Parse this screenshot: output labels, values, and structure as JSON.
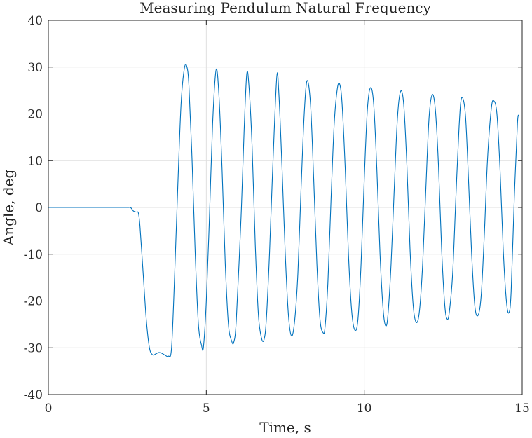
{
  "chart_data": {
    "type": "line",
    "title": "Measuring Pendulum Natural Frequency",
    "xlabel": "Time, s",
    "ylabel": "Angle, deg",
    "xlim": [
      0,
      15
    ],
    "ylim": [
      -40,
      40
    ],
    "xticks": [
      0,
      5,
      10,
      15
    ],
    "yticks": [
      -40,
      -30,
      -20,
      -10,
      0,
      10,
      20,
      30,
      40
    ],
    "grid": true,
    "series_color": "#0072BD",
    "series": [
      {
        "x": [
          0,
          0.5,
          1.0,
          1.5,
          2.0,
          2.5,
          2.6,
          2.7,
          2.8,
          2.85,
          2.9,
          3.0,
          3.1,
          3.2,
          3.3,
          3.4,
          3.5,
          3.6,
          3.7,
          3.8,
          3.9,
          4.0,
          4.1,
          4.2,
          4.3,
          4.38,
          4.45,
          4.55,
          4.65,
          4.75,
          4.85,
          4.91,
          5.0,
          5.1,
          5.2,
          5.31,
          5.4,
          5.5,
          5.6,
          5.7,
          5.8,
          5.87,
          5.95,
          6.1,
          6.2,
          6.28,
          6.35,
          6.45,
          6.55,
          6.65,
          6.75,
          6.83,
          6.9,
          7.0,
          7.1,
          7.23,
          7.3,
          7.4,
          7.5,
          7.6,
          7.7,
          7.8,
          7.9,
          8.0,
          8.1,
          8.19,
          8.3,
          8.4,
          8.5,
          8.6,
          8.7,
          8.76,
          8.85,
          8.95,
          9.05,
          9.15,
          9.23,
          9.3,
          9.4,
          9.5,
          9.6,
          9.7,
          9.8,
          9.9,
          10.0,
          10.1,
          10.2,
          10.3,
          10.4,
          10.5,
          10.6,
          10.68,
          10.75,
          10.85,
          10.95,
          11.05,
          11.15,
          11.25,
          11.35,
          11.45,
          11.55,
          11.65,
          11.75,
          11.85,
          11.95,
          12.05,
          12.15,
          12.25,
          12.35,
          12.45,
          12.55,
          12.63,
          12.7,
          12.8,
          12.9,
          13.0,
          13.08,
          13.2,
          13.3,
          13.4,
          13.5,
          13.6,
          13.7,
          13.8,
          13.9,
          14.02,
          14.1,
          14.2,
          14.3,
          14.4,
          14.5,
          14.58,
          14.65,
          14.75,
          14.85,
          14.9
        ],
        "y": [
          0,
          0,
          0,
          0,
          0,
          0,
          0,
          -0.8,
          -1.0,
          -1.2,
          -4,
          -14,
          -24,
          -30,
          -31.5,
          -31.3,
          -31,
          -31.2,
          -31.6,
          -31.8,
          -30,
          -14,
          5,
          22,
          29.5,
          30.2,
          26,
          10,
          -10,
          -25,
          -29.5,
          -29.8,
          -20,
          -2,
          18,
          29.4,
          24,
          8,
          -12,
          -25,
          -28.5,
          -28.8,
          -24,
          -2,
          17,
          28.5,
          26,
          13,
          -8,
          -23,
          -28,
          -28.2,
          -24,
          -10,
          8,
          27.8,
          24,
          8,
          -10,
          -23,
          -27.5,
          -24,
          -14,
          4,
          20,
          27.1,
          22,
          6,
          -12,
          -24,
          -26.8,
          -25.5,
          -16,
          2,
          18,
          25.5,
          26.2,
          22,
          8,
          -10,
          -22,
          -26.2,
          -24,
          -12,
          6,
          21,
          25.6,
          22,
          8,
          -10,
          -22,
          -25.3,
          -23,
          -12,
          4,
          19,
          24.8,
          22,
          9,
          -9,
          -21,
          -24.6,
          -22,
          -12,
          4,
          19,
          24.1,
          21,
          9,
          -9,
          -21,
          -23.9,
          -22,
          -14,
          2,
          17,
          23.4,
          20,
          6,
          -10,
          -21,
          -23.1,
          -19,
          -6,
          10,
          21,
          22.8,
          20,
          8,
          -9,
          -20,
          -22.5,
          -18,
          2,
          18,
          19.5
        ]
      }
    ]
  }
}
